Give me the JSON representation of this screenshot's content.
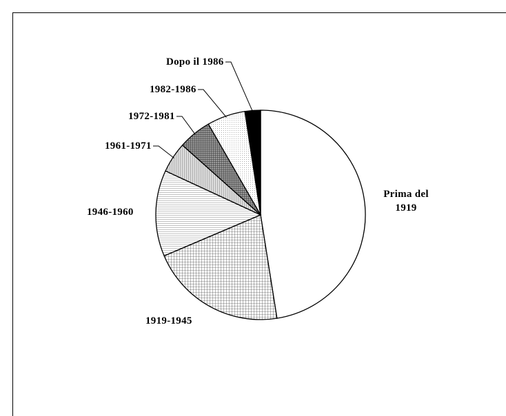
{
  "chart_data": {
    "type": "pie",
    "categories": [
      "Prima del 1919",
      "1919-1945",
      "1946-1960",
      "1961-1971",
      "1972-1981",
      "1982-1986",
      "Dopo il 1986"
    ],
    "values": [
      47.5,
      21.1,
      13.3,
      4.7,
      5.1,
      5.9,
      2.4
    ],
    "patterns": [
      "none",
      "grid",
      "hlines",
      "vlines",
      "crosshatch",
      "dots",
      "solid"
    ]
  }
}
